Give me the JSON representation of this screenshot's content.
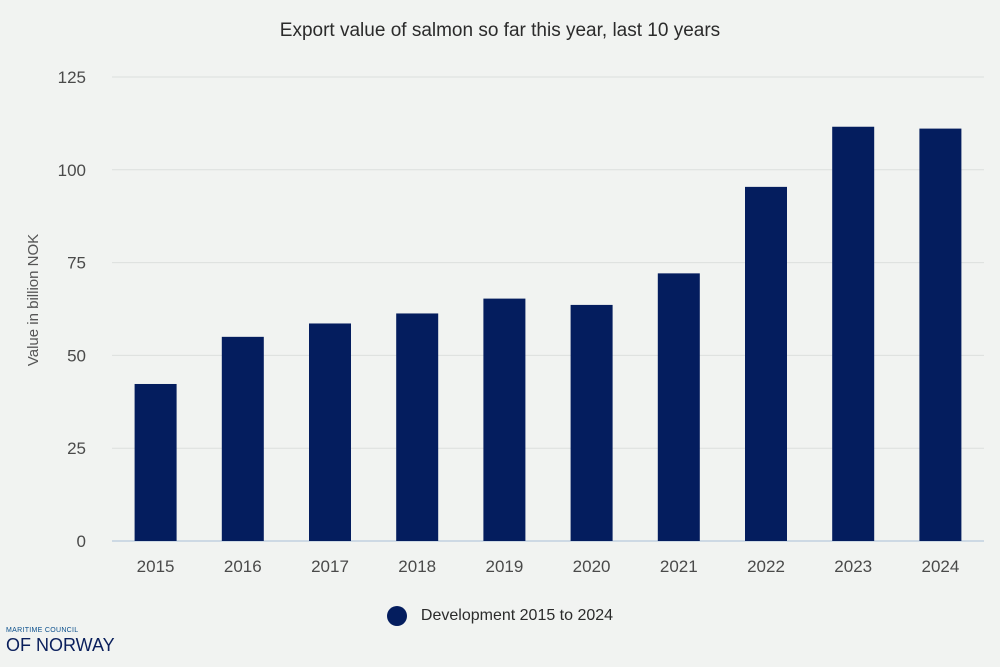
{
  "colors": {
    "bar": "#041d5e",
    "grid": "#dcdfdd",
    "baseline": "#a9bfd6",
    "background": "#f1f3f1"
  },
  "logo": {
    "top": "MARITIME COUNCIL",
    "bottom": "OF NORWAY"
  },
  "chart_data": {
    "type": "bar",
    "title": "Export value of salmon so far this year, last 10 years",
    "xlabel": "",
    "ylabel": "Value in billion NOK",
    "categories": [
      "2015",
      "2016",
      "2017",
      "2018",
      "2019",
      "2020",
      "2021",
      "2022",
      "2023",
      "2024"
    ],
    "series": [
      {
        "name": "Development 2015 to 2024",
        "values": [
          42.3,
          55.0,
          58.6,
          61.3,
          65.3,
          63.6,
          72.1,
          95.4,
          111.6,
          111.1
        ]
      }
    ],
    "ylim": [
      0,
      125
    ],
    "yticks": [
      "0",
      "25",
      "50",
      "75",
      "100",
      "125"
    ],
    "grid": true,
    "legend_position": "bottom-center"
  }
}
